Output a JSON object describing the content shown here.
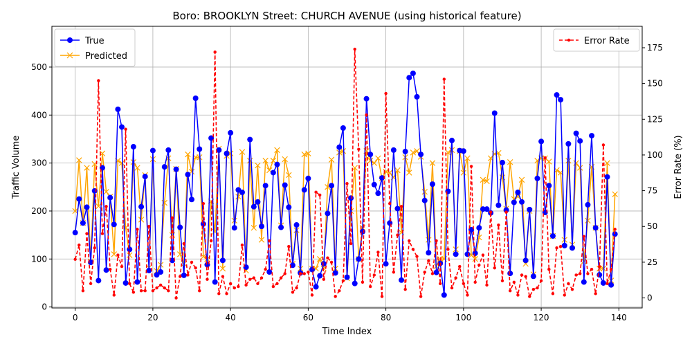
{
  "chart_data": {
    "type": "line",
    "title": "Boro: BROOKLYN Street: CHURCH AVENUE (using historical feature)",
    "xlabel": "Time Index",
    "ylabel": "Traffic Volume",
    "y2label": "Error Rate (%)",
    "xlim": [
      -6,
      146
    ],
    "ylim": [
      -2,
      585
    ],
    "y2lim": [
      -7,
      190
    ],
    "xticks": [
      0,
      20,
      40,
      60,
      80,
      100,
      120,
      140
    ],
    "yticks": [
      0,
      100,
      200,
      300,
      400,
      500
    ],
    "y2ticks": [
      0,
      25,
      50,
      75,
      100,
      125,
      150,
      175
    ],
    "grid": true,
    "legend_left": {
      "placement": "upper-left",
      "entries": [
        "True",
        "Predicted"
      ]
    },
    "legend_right": {
      "placement": "upper-right",
      "entries": [
        "Error Rate"
      ]
    },
    "series": [
      {
        "name": "True",
        "axis": "left",
        "color": "#0000ff",
        "marker": "circle",
        "values": [
          155,
          225,
          175,
          208,
          93,
          242,
          55,
          290,
          77,
          228,
          172,
          412,
          375,
          50,
          120,
          334,
          52,
          209,
          272,
          76,
          326,
          67,
          73,
          292,
          327,
          97,
          287,
          166,
          66,
          276,
          224,
          435,
          329,
          173,
          88,
          352,
          52,
          327,
          97,
          320,
          363,
          165,
          244,
          239,
          83,
          349,
          209,
          219,
          168,
          253,
          73,
          280,
          297,
          166,
          254,
          208,
          87,
          171,
          71,
          244,
          268,
          78,
          42,
          65,
          90,
          195,
          253,
          71,
          333,
          373,
          62,
          227,
          49,
          100,
          157,
          434,
          318,
          255,
          237,
          269,
          90,
          175,
          327,
          205,
          56,
          324,
          478,
          487,
          438,
          318,
          222,
          113,
          256,
          72,
          91,
          25,
          241,
          347,
          110,
          326,
          325,
          110,
          161,
          112,
          165,
          204,
          204,
          196,
          404,
          212,
          301,
          202,
          70,
          218,
          239,
          219,
          97,
          203,
          64,
          268,
          345,
          197,
          253,
          148,
          442,
          432,
          128,
          340,
          123,
          362,
          346,
          52,
          213,
          357,
          165,
          67,
          50,
          271,
          46,
          152
        ]
      },
      {
        "name": "Predicted",
        "axis": "left",
        "color": "#ffa500",
        "marker": "x",
        "values": [
          200,
          306,
          175,
          290,
          95,
          298,
          210,
          320,
          240,
          230,
          110,
          305,
          300,
          165,
          108,
          302,
          290,
          182,
          275,
          82,
          308,
          75,
          88,
          217,
          310,
          150,
          288,
          110,
          90,
          318,
          282,
          312,
          312,
          105,
          100,
          220,
          157,
          330,
          80,
          315,
          320,
          180,
          230,
          323,
          76,
          305,
          165,
          295,
          140,
          305,
          285,
          305,
          327,
          170,
          308,
          275,
          90,
          160,
          80,
          318,
          320,
          80,
          80,
          100,
          80,
          250,
          307,
          80,
          322,
          325,
          60,
          200,
          290,
          100,
          165,
          325,
          305,
          300,
          310,
          268,
          282,
          280,
          270,
          285,
          155,
          312,
          280,
          322,
          325,
          313,
          240,
          140,
          300,
          85,
          100,
          100,
          322,
          327,
          120,
          325,
          280,
          310,
          108,
          100,
          145,
          265,
          262,
          310,
          319,
          321,
          270,
          205,
          302,
          225,
          230,
          265,
          90,
          200,
          68,
          305,
          310,
          310,
          303,
          148,
          285,
          280,
          140,
          305,
          130,
          300,
          290,
          95,
          180,
          292,
          165,
          80,
          80,
          300,
          55,
          235
        ]
      },
      {
        "name": "Error Rate",
        "axis": "right",
        "color": "#ff0000",
        "marker": "dot",
        "dashed": true,
        "values": [
          27,
          37,
          5,
          45,
          10,
          35,
          152,
          45,
          64,
          20,
          2,
          30,
          22,
          118,
          10,
          4,
          48,
          5,
          5,
          50,
          5,
          7,
          9,
          7,
          5,
          56,
          0,
          15,
          38,
          16,
          25,
          21,
          5,
          66,
          13,
          40,
          172,
          3,
          15,
          3,
          10,
          7,
          8,
          37,
          9,
          13,
          14,
          10,
          14,
          20,
          40,
          8,
          10,
          14,
          17,
          36,
          4,
          7,
          17,
          17,
          18,
          2,
          74,
          72,
          13,
          28,
          25,
          1,
          5,
          12,
          80,
          38,
          174,
          104,
          11,
          128,
          8,
          16,
          32,
          1,
          143,
          66,
          18,
          44,
          64,
          6,
          40,
          34,
          29,
          1,
          18,
          26,
          17,
          40,
          10,
          153,
          34,
          7,
          14,
          22,
          10,
          2,
          92,
          11,
          23,
          30,
          9,
          60,
          21,
          51,
          12,
          60,
          5,
          11,
          2,
          16,
          15,
          1,
          6,
          7,
          12,
          98,
          20,
          3,
          35,
          36,
          2,
          10,
          6,
          16,
          17,
          43,
          17,
          20,
          3,
          22,
          107,
          10,
          20,
          48
        ]
      }
    ]
  }
}
